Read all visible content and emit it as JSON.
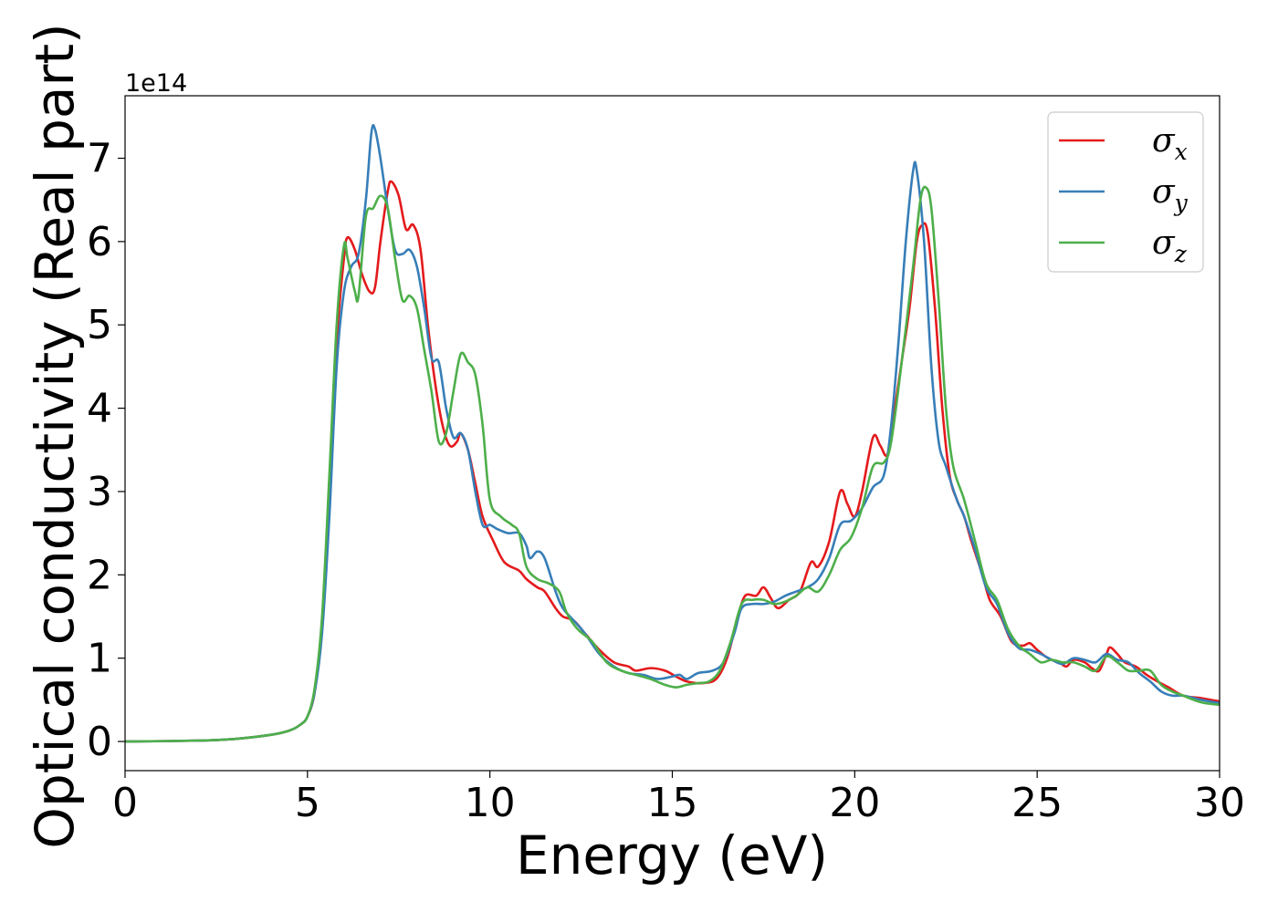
{
  "chart_data": {
    "type": "line",
    "title": "",
    "xlabel": "Energy (eV)",
    "ylabel": "Optical conductivity (Real part)",
    "y_multiplier_label": "1e14",
    "xlim": [
      0,
      30
    ],
    "ylim": [
      -0.35,
      7.75
    ],
    "xticks": [
      0,
      5,
      10,
      15,
      20,
      25,
      30
    ],
    "xtick_labels": [
      "0",
      "5",
      "10",
      "15",
      "20",
      "25",
      "30"
    ],
    "yticks": [
      0,
      1,
      2,
      3,
      4,
      5,
      6,
      7
    ],
    "ytick_labels": [
      "0",
      "1",
      "2",
      "3",
      "4",
      "5",
      "6",
      "7"
    ],
    "grid": false,
    "legend_position": "top-right",
    "legend": [
      {
        "symbol": "σ",
        "subscript": "x"
      },
      {
        "symbol": "σ",
        "subscript": "y"
      },
      {
        "symbol": "σ",
        "subscript": "z"
      }
    ],
    "series": [
      {
        "name": "σx",
        "color": "#e41a1c",
        "points": [
          [
            0,
            0
          ],
          [
            2,
            0.01
          ],
          [
            3,
            0.03
          ],
          [
            4,
            0.08
          ],
          [
            4.5,
            0.13
          ],
          [
            4.8,
            0.2
          ],
          [
            5.0,
            0.3
          ],
          [
            5.2,
            0.6
          ],
          [
            5.4,
            1.4
          ],
          [
            5.6,
            3.0
          ],
          [
            5.8,
            4.8
          ],
          [
            6.0,
            5.8
          ],
          [
            6.1,
            6.05
          ],
          [
            6.3,
            5.9
          ],
          [
            6.5,
            5.6
          ],
          [
            6.7,
            5.4
          ],
          [
            6.85,
            5.45
          ],
          [
            7.0,
            6.0
          ],
          [
            7.2,
            6.6
          ],
          [
            7.3,
            6.72
          ],
          [
            7.5,
            6.55
          ],
          [
            7.7,
            6.15
          ],
          [
            7.9,
            6.2
          ],
          [
            8.1,
            5.9
          ],
          [
            8.3,
            5.0
          ],
          [
            8.5,
            4.3
          ],
          [
            8.7,
            3.8
          ],
          [
            8.9,
            3.55
          ],
          [
            9.1,
            3.6
          ],
          [
            9.2,
            3.7
          ],
          [
            9.4,
            3.5
          ],
          [
            9.6,
            3.1
          ],
          [
            9.8,
            2.7
          ],
          [
            10.1,
            2.4
          ],
          [
            10.4,
            2.15
          ],
          [
            10.8,
            2.05
          ],
          [
            11.0,
            1.95
          ],
          [
            11.3,
            1.85
          ],
          [
            11.5,
            1.8
          ],
          [
            11.8,
            1.6
          ],
          [
            12.0,
            1.5
          ],
          [
            12.3,
            1.45
          ],
          [
            12.6,
            1.3
          ],
          [
            13.0,
            1.1
          ],
          [
            13.4,
            0.95
          ],
          [
            13.8,
            0.9
          ],
          [
            14.0,
            0.85
          ],
          [
            14.4,
            0.88
          ],
          [
            14.8,
            0.85
          ],
          [
            15.1,
            0.78
          ],
          [
            15.4,
            0.72
          ],
          [
            15.8,
            0.7
          ],
          [
            16.2,
            0.75
          ],
          [
            16.5,
            1.0
          ],
          [
            16.8,
            1.5
          ],
          [
            17.0,
            1.75
          ],
          [
            17.3,
            1.75
          ],
          [
            17.5,
            1.85
          ],
          [
            17.7,
            1.72
          ],
          [
            17.9,
            1.6
          ],
          [
            18.2,
            1.7
          ],
          [
            18.5,
            1.8
          ],
          [
            18.8,
            2.15
          ],
          [
            19.0,
            2.1
          ],
          [
            19.3,
            2.4
          ],
          [
            19.6,
            3.0
          ],
          [
            19.8,
            2.85
          ],
          [
            20.0,
            2.7
          ],
          [
            20.2,
            3.0
          ],
          [
            20.5,
            3.65
          ],
          [
            20.7,
            3.55
          ],
          [
            20.9,
            3.45
          ],
          [
            21.1,
            4.0
          ],
          [
            21.3,
            4.6
          ],
          [
            21.5,
            5.2
          ],
          [
            21.7,
            6.0
          ],
          [
            21.85,
            6.2
          ],
          [
            22.0,
            6.1
          ],
          [
            22.2,
            5.2
          ],
          [
            22.4,
            4.0
          ],
          [
            22.6,
            3.2
          ],
          [
            22.8,
            2.9
          ],
          [
            23.0,
            2.7
          ],
          [
            23.2,
            2.4
          ],
          [
            23.5,
            2.0
          ],
          [
            23.7,
            1.7
          ],
          [
            24.0,
            1.5
          ],
          [
            24.3,
            1.2
          ],
          [
            24.6,
            1.15
          ],
          [
            24.8,
            1.18
          ],
          [
            25.0,
            1.1
          ],
          [
            25.3,
            1.0
          ],
          [
            25.6,
            0.95
          ],
          [
            25.8,
            0.9
          ],
          [
            26.0,
            0.98
          ],
          [
            26.3,
            0.95
          ],
          [
            26.5,
            0.88
          ],
          [
            26.7,
            0.85
          ],
          [
            26.9,
            1.05
          ],
          [
            27.0,
            1.13
          ],
          [
            27.2,
            1.05
          ],
          [
            27.4,
            0.95
          ],
          [
            27.7,
            0.9
          ],
          [
            28.0,
            0.8
          ],
          [
            28.3,
            0.72
          ],
          [
            28.6,
            0.65
          ],
          [
            29.0,
            0.55
          ],
          [
            29.5,
            0.52
          ],
          [
            30.0,
            0.48
          ]
        ]
      },
      {
        "name": "σy",
        "color": "#377eb8",
        "points": [
          [
            0,
            0
          ],
          [
            2,
            0.01
          ],
          [
            3,
            0.03
          ],
          [
            4,
            0.08
          ],
          [
            4.5,
            0.13
          ],
          [
            4.8,
            0.2
          ],
          [
            5.0,
            0.3
          ],
          [
            5.2,
            0.6
          ],
          [
            5.4,
            1.3
          ],
          [
            5.6,
            2.7
          ],
          [
            5.8,
            4.5
          ],
          [
            6.0,
            5.4
          ],
          [
            6.2,
            5.7
          ],
          [
            6.4,
            5.85
          ],
          [
            6.6,
            6.5
          ],
          [
            6.75,
            7.3
          ],
          [
            6.85,
            7.35
          ],
          [
            7.0,
            7.0
          ],
          [
            7.2,
            6.4
          ],
          [
            7.4,
            5.9
          ],
          [
            7.6,
            5.85
          ],
          [
            7.8,
            5.9
          ],
          [
            8.0,
            5.7
          ],
          [
            8.2,
            5.2
          ],
          [
            8.4,
            4.6
          ],
          [
            8.6,
            4.55
          ],
          [
            8.8,
            4.0
          ],
          [
            9.0,
            3.65
          ],
          [
            9.2,
            3.7
          ],
          [
            9.4,
            3.5
          ],
          [
            9.6,
            3.0
          ],
          [
            9.8,
            2.6
          ],
          [
            10.0,
            2.6
          ],
          [
            10.2,
            2.55
          ],
          [
            10.5,
            2.5
          ],
          [
            10.8,
            2.5
          ],
          [
            11.0,
            2.35
          ],
          [
            11.1,
            2.2
          ],
          [
            11.3,
            2.28
          ],
          [
            11.5,
            2.2
          ],
          [
            11.8,
            1.8
          ],
          [
            12.0,
            1.6
          ],
          [
            12.3,
            1.45
          ],
          [
            12.6,
            1.3
          ],
          [
            13.0,
            1.05
          ],
          [
            13.4,
            0.9
          ],
          [
            13.8,
            0.82
          ],
          [
            14.2,
            0.8
          ],
          [
            14.6,
            0.75
          ],
          [
            15.0,
            0.78
          ],
          [
            15.2,
            0.8
          ],
          [
            15.4,
            0.75
          ],
          [
            15.7,
            0.82
          ],
          [
            16.1,
            0.85
          ],
          [
            16.4,
            0.95
          ],
          [
            16.7,
            1.3
          ],
          [
            16.9,
            1.6
          ],
          [
            17.2,
            1.65
          ],
          [
            17.5,
            1.65
          ],
          [
            17.8,
            1.68
          ],
          [
            18.1,
            1.75
          ],
          [
            18.4,
            1.8
          ],
          [
            18.7,
            1.85
          ],
          [
            19.0,
            1.95
          ],
          [
            19.3,
            2.2
          ],
          [
            19.6,
            2.6
          ],
          [
            19.9,
            2.65
          ],
          [
            20.2,
            2.8
          ],
          [
            20.5,
            3.05
          ],
          [
            20.8,
            3.2
          ],
          [
            21.0,
            3.8
          ],
          [
            21.2,
            4.8
          ],
          [
            21.4,
            6.0
          ],
          [
            21.6,
            6.85
          ],
          [
            21.7,
            6.85
          ],
          [
            21.9,
            6.0
          ],
          [
            22.1,
            4.5
          ],
          [
            22.3,
            3.6
          ],
          [
            22.5,
            3.3
          ],
          [
            22.8,
            2.9
          ],
          [
            23.0,
            2.7
          ],
          [
            23.3,
            2.3
          ],
          [
            23.6,
            1.85
          ],
          [
            23.9,
            1.65
          ],
          [
            24.2,
            1.3
          ],
          [
            24.5,
            1.12
          ],
          [
            24.8,
            1.1
          ],
          [
            25.1,
            1.05
          ],
          [
            25.4,
            0.98
          ],
          [
            25.7,
            0.93
          ],
          [
            26.0,
            1.0
          ],
          [
            26.3,
            0.98
          ],
          [
            26.6,
            0.95
          ],
          [
            26.9,
            1.05
          ],
          [
            27.2,
            0.98
          ],
          [
            27.5,
            0.95
          ],
          [
            27.8,
            0.82
          ],
          [
            28.1,
            0.72
          ],
          [
            28.4,
            0.6
          ],
          [
            28.7,
            0.55
          ],
          [
            29.0,
            0.55
          ],
          [
            29.5,
            0.5
          ],
          [
            30.0,
            0.46
          ]
        ]
      },
      {
        "name": "σz",
        "color": "#4daf4a",
        "points": [
          [
            0,
            0
          ],
          [
            2,
            0.01
          ],
          [
            3,
            0.03
          ],
          [
            4,
            0.08
          ],
          [
            4.5,
            0.13
          ],
          [
            4.8,
            0.2
          ],
          [
            5.0,
            0.3
          ],
          [
            5.2,
            0.65
          ],
          [
            5.4,
            1.5
          ],
          [
            5.6,
            3.2
          ],
          [
            5.8,
            5.0
          ],
          [
            6.0,
            5.95
          ],
          [
            6.1,
            5.8
          ],
          [
            6.3,
            5.4
          ],
          [
            6.4,
            5.35
          ],
          [
            6.6,
            6.3
          ],
          [
            6.8,
            6.4
          ],
          [
            7.0,
            6.55
          ],
          [
            7.2,
            6.4
          ],
          [
            7.4,
            5.8
          ],
          [
            7.6,
            5.3
          ],
          [
            7.8,
            5.35
          ],
          [
            8.0,
            5.2
          ],
          [
            8.2,
            4.7
          ],
          [
            8.4,
            4.2
          ],
          [
            8.6,
            3.6
          ],
          [
            8.8,
            3.7
          ],
          [
            9.0,
            4.2
          ],
          [
            9.2,
            4.65
          ],
          [
            9.4,
            4.55
          ],
          [
            9.6,
            4.4
          ],
          [
            9.8,
            3.8
          ],
          [
            10.0,
            2.9
          ],
          [
            10.3,
            2.7
          ],
          [
            10.6,
            2.6
          ],
          [
            10.8,
            2.5
          ],
          [
            11.0,
            2.1
          ],
          [
            11.3,
            1.95
          ],
          [
            11.6,
            1.9
          ],
          [
            11.9,
            1.8
          ],
          [
            12.1,
            1.55
          ],
          [
            12.4,
            1.35
          ],
          [
            12.8,
            1.2
          ],
          [
            13.2,
            0.95
          ],
          [
            13.6,
            0.85
          ],
          [
            14.0,
            0.8
          ],
          [
            14.4,
            0.75
          ],
          [
            14.8,
            0.68
          ],
          [
            15.1,
            0.65
          ],
          [
            15.4,
            0.68
          ],
          [
            15.7,
            0.7
          ],
          [
            16.0,
            0.72
          ],
          [
            16.3,
            0.85
          ],
          [
            16.6,
            1.2
          ],
          [
            16.9,
            1.65
          ],
          [
            17.2,
            1.7
          ],
          [
            17.5,
            1.7
          ],
          [
            17.8,
            1.65
          ],
          [
            18.1,
            1.68
          ],
          [
            18.4,
            1.75
          ],
          [
            18.7,
            1.85
          ],
          [
            19.0,
            1.8
          ],
          [
            19.3,
            2.0
          ],
          [
            19.6,
            2.3
          ],
          [
            19.9,
            2.45
          ],
          [
            20.2,
            2.8
          ],
          [
            20.5,
            3.3
          ],
          [
            20.8,
            3.35
          ],
          [
            21.0,
            3.6
          ],
          [
            21.3,
            4.6
          ],
          [
            21.6,
            5.7
          ],
          [
            21.8,
            6.5
          ],
          [
            21.95,
            6.65
          ],
          [
            22.1,
            6.4
          ],
          [
            22.3,
            5.3
          ],
          [
            22.5,
            4.0
          ],
          [
            22.7,
            3.3
          ],
          [
            23.0,
            2.9
          ],
          [
            23.3,
            2.4
          ],
          [
            23.6,
            1.9
          ],
          [
            23.9,
            1.7
          ],
          [
            24.2,
            1.35
          ],
          [
            24.5,
            1.15
          ],
          [
            24.8,
            1.05
          ],
          [
            25.1,
            0.95
          ],
          [
            25.4,
            0.98
          ],
          [
            25.7,
            0.95
          ],
          [
            26.0,
            0.95
          ],
          [
            26.3,
            0.9
          ],
          [
            26.6,
            0.85
          ],
          [
            26.9,
            1.02
          ],
          [
            27.2,
            0.95
          ],
          [
            27.5,
            0.85
          ],
          [
            27.8,
            0.85
          ],
          [
            28.1,
            0.85
          ],
          [
            28.4,
            0.68
          ],
          [
            28.7,
            0.6
          ],
          [
            29.0,
            0.55
          ],
          [
            29.5,
            0.47
          ],
          [
            30.0,
            0.44
          ]
        ]
      }
    ]
  }
}
